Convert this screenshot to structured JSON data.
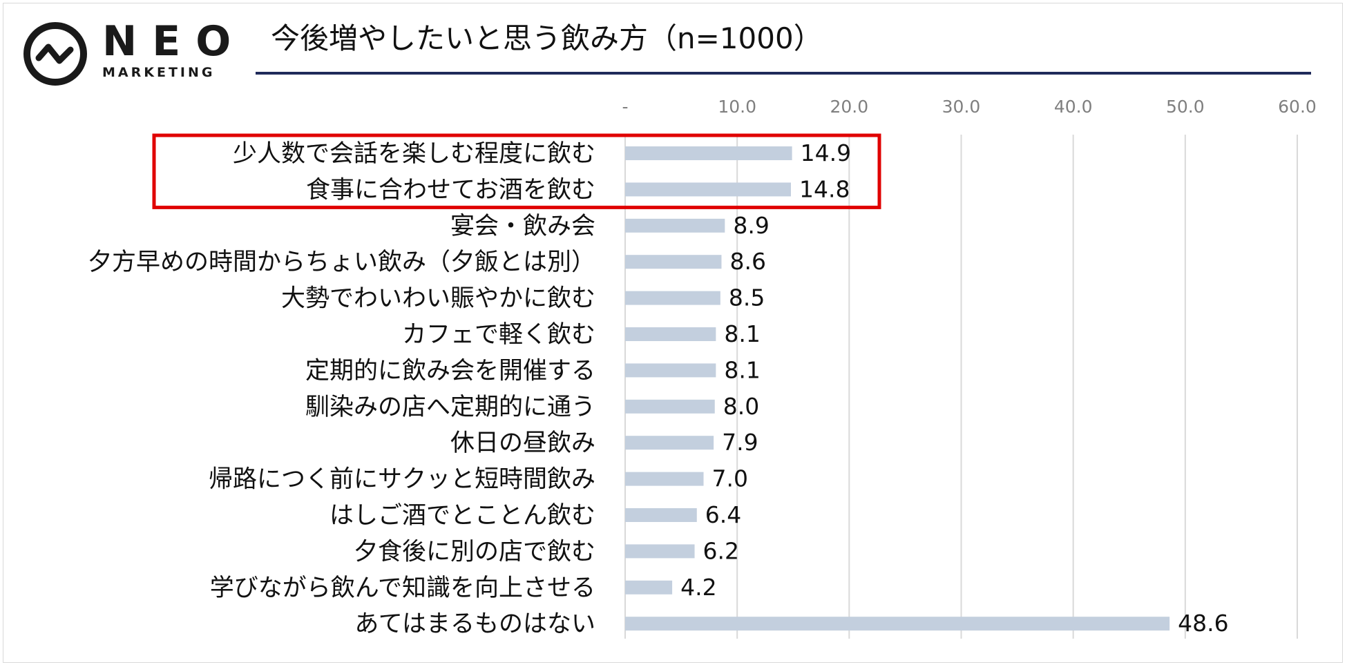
{
  "logo": {
    "word": "NEO",
    "sub": "MARKETING"
  },
  "title": "今後増やしたいと思う飲み方（n=1000）",
  "colors": {
    "bar": "#c3cfde",
    "grid": "#d9d9d9",
    "highlight": "#e00000",
    "rule": "#1f2a5a"
  },
  "chart_data": {
    "type": "bar",
    "orientation": "horizontal",
    "categories": [
      "少人数で会話を楽しむ程度に飲む",
      "食事に合わせてお酒を飲む",
      "宴会・飲み会",
      "夕方早めの時間からちょい飲み（夕飯とは別）",
      "大勢でわいわい賑やかに飲む",
      "カフェで軽く飲む",
      "定期的に飲み会を開催する",
      "馴染みの店へ定期的に通う",
      "休日の昼飲み",
      "帰路につく前にサクッと短時間飲み",
      "はしご酒でとことん飲む",
      "夕食後に別の店で飲む",
      "学びながら飲んで知識を向上させる",
      "あてはまるものはない"
    ],
    "values": [
      14.9,
      14.8,
      8.9,
      8.6,
      8.5,
      8.1,
      8.1,
      8.0,
      7.9,
      7.0,
      6.4,
      6.2,
      4.2,
      48.6
    ],
    "value_labels": [
      "14.9",
      "14.8",
      "8.9",
      "8.6",
      "8.5",
      "8.1",
      "8.1",
      "8.0",
      "7.9",
      "7.0",
      "6.4",
      "6.2",
      "4.2",
      "48.6"
    ],
    "xlim": [
      0,
      60
    ],
    "ticks": [
      0,
      10,
      20,
      30,
      40,
      50,
      60
    ],
    "tick_labels": [
      "-",
      "10.0",
      "20.0",
      "30.0",
      "40.0",
      "50.0",
      "60.0"
    ],
    "grid": true,
    "highlighted_categories": [
      0,
      1
    ]
  }
}
